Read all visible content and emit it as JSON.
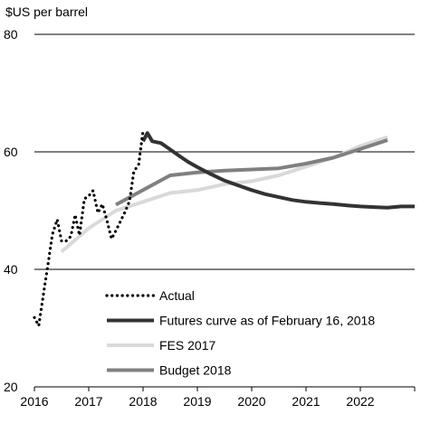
{
  "chart_data": {
    "type": "line",
    "ylabel": "$US per barrel",
    "xlim": [
      2016,
      2023
    ],
    "ylim": [
      20,
      80
    ],
    "x_ticks": [
      2016,
      2017,
      2018,
      2019,
      2020,
      2021,
      2022
    ],
    "y_ticks": [
      20,
      40,
      60,
      80
    ],
    "gridlines_y": [
      40,
      60,
      80
    ],
    "legend_position": "bottom-center",
    "series": [
      {
        "name": "Actual",
        "style": "dotted",
        "color": "#000000",
        "points": [
          [
            2016.0,
            31.8
          ],
          [
            2016.08,
            30.4
          ],
          [
            2016.17,
            36.0
          ],
          [
            2016.25,
            40.8
          ],
          [
            2016.33,
            45.9
          ],
          [
            2016.42,
            48.5
          ],
          [
            2016.5,
            44.8
          ],
          [
            2016.58,
            44.8
          ],
          [
            2016.67,
            45.6
          ],
          [
            2016.75,
            49.3
          ],
          [
            2016.83,
            45.8
          ],
          [
            2016.92,
            52.0
          ],
          [
            2017.0,
            52.5
          ],
          [
            2017.08,
            53.4
          ],
          [
            2017.17,
            49.6
          ],
          [
            2017.25,
            51.1
          ],
          [
            2017.33,
            48.5
          ],
          [
            2017.42,
            45.2
          ],
          [
            2017.5,
            46.6
          ],
          [
            2017.58,
            48.1
          ],
          [
            2017.67,
            49.8
          ],
          [
            2017.75,
            51.6
          ],
          [
            2017.83,
            56.6
          ],
          [
            2017.92,
            57.9
          ],
          [
            2018.0,
            63.6
          ]
        ]
      },
      {
        "name": "Futures curve as of February 16, 2018",
        "style": "solid",
        "color": "#333333",
        "points": [
          [
            2018.0,
            61.8
          ],
          [
            2018.08,
            63.2
          ],
          [
            2018.17,
            61.8
          ],
          [
            2018.33,
            61.5
          ],
          [
            2018.5,
            60.4
          ],
          [
            2018.67,
            59.3
          ],
          [
            2018.83,
            58.3
          ],
          [
            2019.0,
            57.4
          ],
          [
            2019.25,
            56.2
          ],
          [
            2019.5,
            55.1
          ],
          [
            2019.75,
            54.3
          ],
          [
            2020.0,
            53.5
          ],
          [
            2020.25,
            52.8
          ],
          [
            2020.5,
            52.3
          ],
          [
            2020.75,
            51.8
          ],
          [
            2021.0,
            51.5
          ],
          [
            2021.25,
            51.3
          ],
          [
            2021.5,
            51.1
          ],
          [
            2021.75,
            50.9
          ],
          [
            2022.0,
            50.7
          ],
          [
            2022.25,
            50.6
          ],
          [
            2022.5,
            50.5
          ],
          [
            2022.75,
            50.7
          ],
          [
            2023.0,
            50.7
          ]
        ]
      },
      {
        "name": "FES 2017",
        "style": "solid",
        "color": "#d9d9d9",
        "points": [
          [
            2016.5,
            43.0
          ],
          [
            2017.0,
            47.0
          ],
          [
            2017.5,
            50.0
          ],
          [
            2018.0,
            51.5
          ],
          [
            2018.5,
            53.0
          ],
          [
            2019.0,
            53.5
          ],
          [
            2019.5,
            54.5
          ],
          [
            2020.0,
            55.0
          ],
          [
            2020.5,
            56.0
          ],
          [
            2021.0,
            57.5
          ],
          [
            2021.5,
            59.0
          ],
          [
            2022.0,
            61.0
          ],
          [
            2022.5,
            62.5
          ]
        ]
      },
      {
        "name": "Budget 2018",
        "style": "solid",
        "color": "#808080",
        "points": [
          [
            2017.5,
            51.0
          ],
          [
            2018.0,
            53.5
          ],
          [
            2018.5,
            56.0
          ],
          [
            2019.0,
            56.5
          ],
          [
            2019.5,
            56.8
          ],
          [
            2020.0,
            57.0
          ],
          [
            2020.5,
            57.2
          ],
          [
            2021.0,
            58.0
          ],
          [
            2021.5,
            59.0
          ],
          [
            2022.0,
            60.5
          ],
          [
            2022.5,
            62.0
          ]
        ]
      }
    ]
  }
}
